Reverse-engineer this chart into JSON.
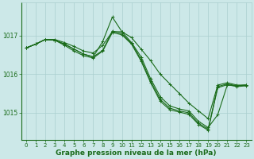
{
  "line_color": "#1a6b1a",
  "bg_color": "#cce8e8",
  "grid_color": "#aacfcf",
  "xlabel": "Graphe pression niveau de la mer (hPa)",
  "xlabel_color": "#1a6b1a",
  "yticks": [
    1015,
    1016,
    1017
  ],
  "ylim": [
    1014.3,
    1017.85
  ],
  "xlim": [
    -0.5,
    23.5
  ],
  "xticks": [
    0,
    1,
    2,
    3,
    4,
    5,
    6,
    7,
    8,
    9,
    10,
    11,
    12,
    13,
    14,
    15,
    16,
    17,
    18,
    19,
    20,
    21,
    22,
    23
  ],
  "series": [
    [
      1016.68,
      1016.78,
      1016.9,
      1016.9,
      1016.82,
      1016.72,
      1016.6,
      1016.55,
      1016.75,
      1017.1,
      1017.1,
      1016.95,
      1016.65,
      1016.35,
      1016.0,
      1015.75,
      1015.5,
      1015.25,
      1015.05,
      1014.85,
      1015.72,
      1015.78,
      1015.72,
      1015.72
    ],
    [
      1016.68,
      1016.78,
      1016.9,
      1016.88,
      1016.78,
      1016.65,
      1016.52,
      1016.45,
      1016.85,
      1017.48,
      1017.1,
      1016.82,
      1016.45,
      1015.88,
      1015.42,
      1015.18,
      1015.1,
      1015.05,
      1014.78,
      1014.62,
      1014.95,
      1015.72,
      1015.7,
      1015.72
    ],
    [
      1016.68,
      1016.78,
      1016.9,
      1016.88,
      1016.78,
      1016.65,
      1016.52,
      1016.45,
      1016.62,
      1017.12,
      1017.05,
      1016.8,
      1016.38,
      1015.82,
      1015.35,
      1015.12,
      1015.05,
      1015.0,
      1014.73,
      1014.58,
      1015.68,
      1015.75,
      1015.7,
      1015.72
    ],
    [
      1016.68,
      1016.78,
      1016.9,
      1016.88,
      1016.75,
      1016.6,
      1016.48,
      1016.42,
      1016.6,
      1017.08,
      1017.02,
      1016.78,
      1016.34,
      1015.78,
      1015.3,
      1015.08,
      1015.02,
      1014.96,
      1014.7,
      1014.55,
      1015.65,
      1015.73,
      1015.68,
      1015.7
    ]
  ],
  "marker": "+",
  "markersize": 3,
  "linewidth": 0.8,
  "tick_fontsize": 5,
  "xlabel_fontsize": 6.5,
  "ytick_fontsize": 5.5
}
